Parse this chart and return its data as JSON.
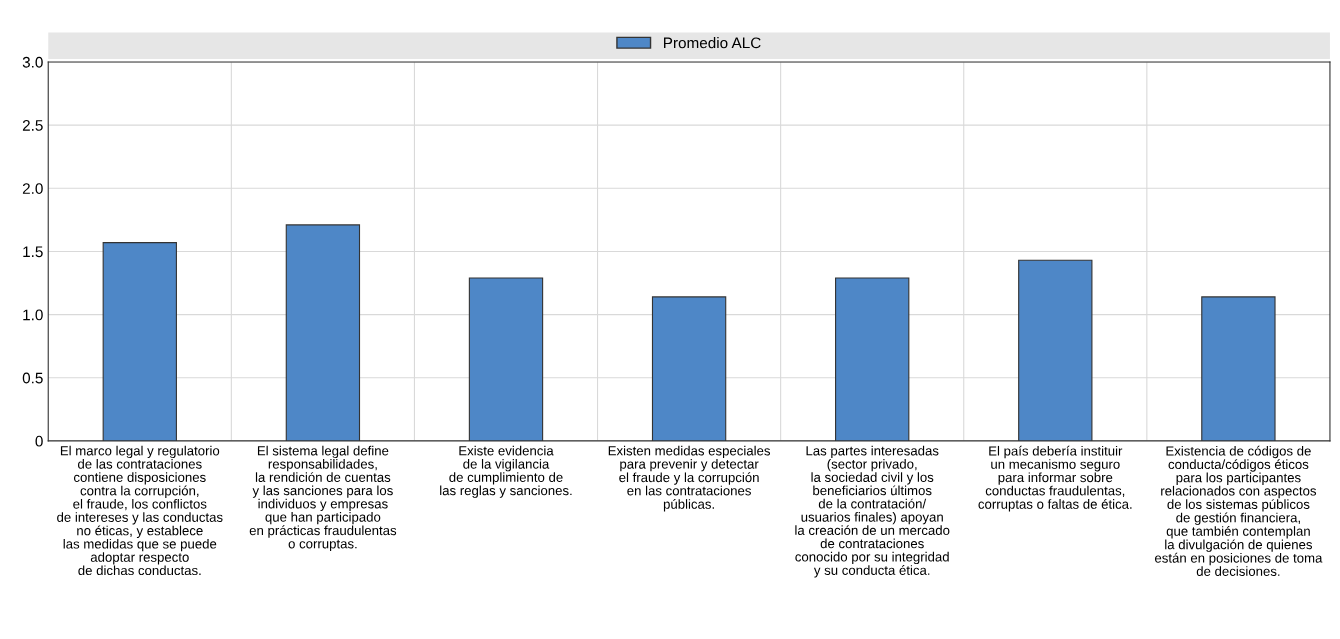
{
  "chart_data": {
    "type": "bar",
    "categories": [
      "El marco legal y regulatorio\nde las contrataciones\ncontiene disposiciones\ncontra la corrupción,\nel fraude, los conflictos\nde intereses y las conductas\nno éticas, y establece\nlas medidas que se puede\nadoptar respecto\nde dichas conductas.",
      "El sistema legal define\nresponsabilidades,\nla rendición de cuentas\ny las sanciones para los\nindividuos y empresas\nque han participado\nen prácticas fraudulentas\no corruptas.",
      "Existe evidencia\nde la vigilancia\nde cumplimiento de\nlas reglas y sanciones.",
      "Existen medidas especiales\npara prevenir y detectar\nel fraude y la corrupción\nen las contrataciones\npúblicas.",
      "Las partes interesadas\n(sector privado,\nla sociedad civil y los\nbeneficiarios últimos\nde la contratación/\nusuarios finales) apoyan\nla creación de un mercado\nde contrataciones\nconocido por su integridad\ny su conducta ética.",
      "El país debería instituir\nun mecanismo seguro\npara informar sobre\nconductas fraudulentas,\ncorruptas o faltas de ética.",
      "Existencia de códigos de\nconducta/códigos éticos\npara los participantes\nrelacionados con aspectos\nde los sistemas públicos\nde gestión financiera,\nque también contemplan\nla divulgación de quienes\nestán en posiciones de toma\nde decisiones."
    ],
    "series": [
      {
        "name": "Promedio ALC",
        "color": "#4e87c7",
        "values": [
          1.57,
          1.71,
          1.29,
          1.14,
          1.29,
          1.43,
          1.14
        ]
      }
    ],
    "ylim": [
      0,
      3.0
    ],
    "yticks": [
      0,
      0.5,
      {
        "value": 1,
        "label": "1.0"
      },
      1.5,
      {
        "value": 2,
        "label": "2.0"
      },
      2.5,
      {
        "value": 3,
        "label": "3.0"
      }
    ],
    "grid": true,
    "legend": "top"
  }
}
